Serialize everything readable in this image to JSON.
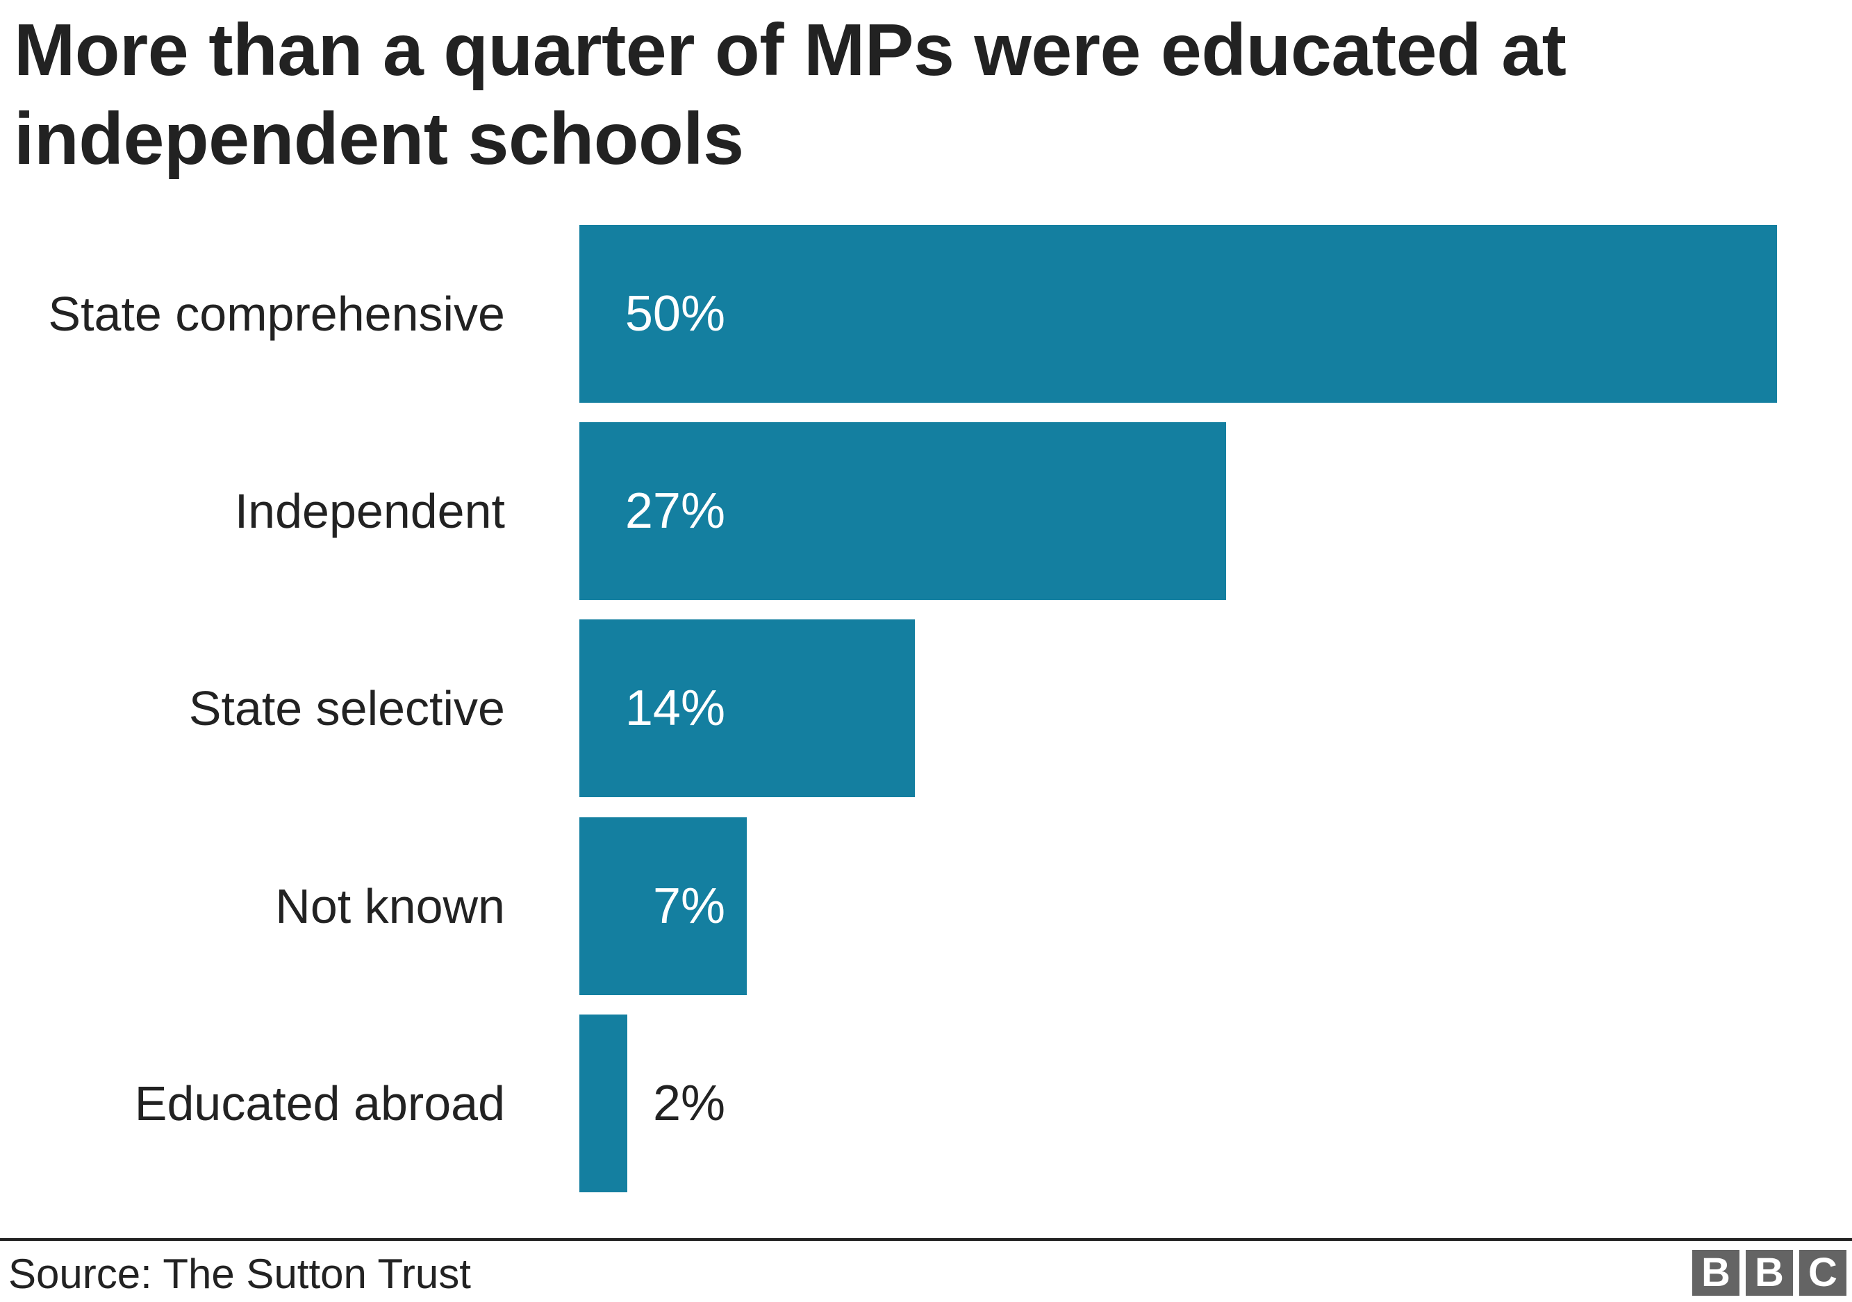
{
  "title": "More than a quarter of MPs were educated at independent schools",
  "colors": {
    "bar": "#147fa0",
    "text": "#222222",
    "logo_bg": "#646464"
  },
  "rows": [
    {
      "label": "State comprehensive",
      "value": 50,
      "value_label": "50%"
    },
    {
      "label": "Independent",
      "value": 27,
      "value_label": "27%"
    },
    {
      "label": "State selective",
      "value": 14,
      "value_label": "14%"
    },
    {
      "label": "Not known",
      "value": 7,
      "value_label": "7%"
    },
    {
      "label": "Educated abroad",
      "value": 2,
      "value_label": "2%"
    }
  ],
  "footer": {
    "source": "Source: The Sutton Trust",
    "logo": [
      "B",
      "B",
      "C"
    ]
  },
  "chart_data": {
    "type": "bar",
    "orientation": "horizontal",
    "title": "More than a quarter of MPs were educated at independent schools",
    "categories": [
      "State comprehensive",
      "Independent",
      "State selective",
      "Not known",
      "Educated abroad"
    ],
    "values": [
      50,
      27,
      14,
      7,
      2
    ],
    "value_labels": [
      "50%",
      "27%",
      "14%",
      "7%",
      "2%"
    ],
    "xlabel": "",
    "ylabel": "",
    "unit": "%",
    "xlim": [
      0,
      50
    ],
    "grid": false,
    "legend": null,
    "source": "Source: The Sutton Trust"
  }
}
